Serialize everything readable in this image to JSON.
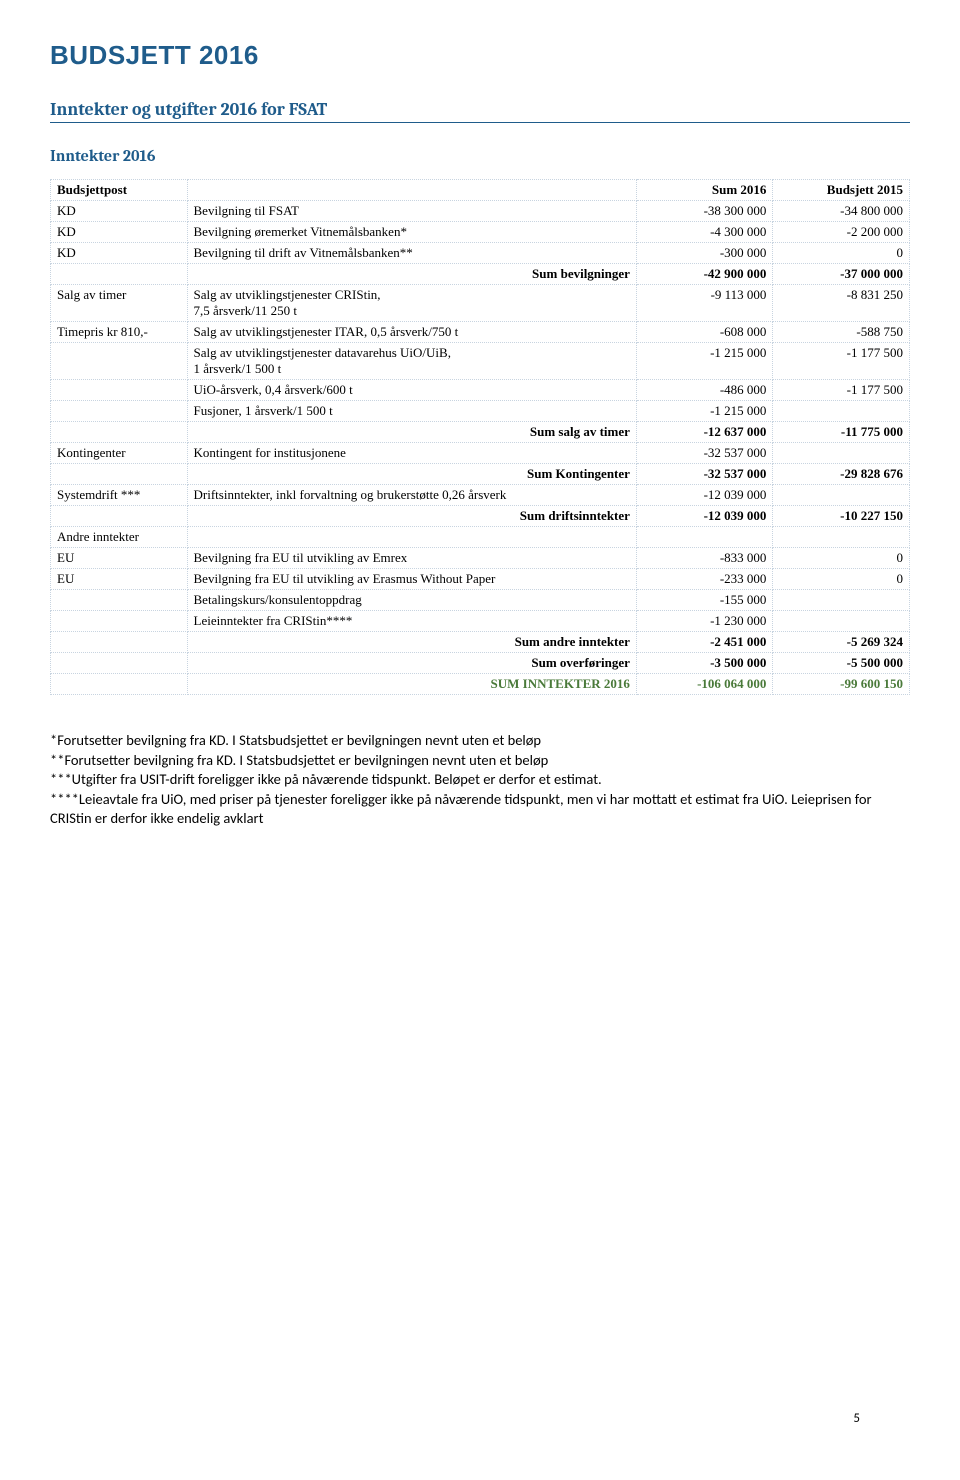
{
  "title": "BUDSJETT 2016",
  "section": "Inntekter og utgifter 2016 for FSAT",
  "subsection": "Inntekter 2016",
  "table": {
    "head": {
      "c0": "Budsjettpost",
      "c1": "",
      "c2": "Sum 2016",
      "c3": "Budsjett 2015"
    },
    "rows": [
      {
        "c0": "KD",
        "c1": "Bevilgning til FSAT",
        "c2": "-38 300 000",
        "c3": "-34 800 000"
      },
      {
        "c0": "KD",
        "c1": "Bevilgning øremerket Vitnemålsbanken*",
        "c2": "-4 300 000",
        "c3": "-2 200 000"
      },
      {
        "c0": "KD",
        "c1": "Bevilgning til drift av Vitnemålsbanken**",
        "c2": "-300 000",
        "c3": "0"
      },
      {
        "bold": true,
        "c0": "",
        "c1": "Sum bevilgninger",
        "c1align": "right",
        "c2": "-42 900 000",
        "c3": "-37 000 000"
      },
      {
        "c0": "Salg av timer",
        "c1": "Salg av utviklingstjenester CRIStin,\n7,5 årsverk/11 250 t",
        "c2": "-9 113 000",
        "c3": "-8 831 250"
      },
      {
        "c0": "Timepris kr 810,-",
        "c1": "Salg av utviklingstjenester ITAR, 0,5 årsverk/750 t",
        "c2": "-608 000",
        "c3": "-588 750"
      },
      {
        "c0": "",
        "c1": "Salg av utviklingstjenester datavarehus UiO/UiB,\n1 årsverk/1 500 t",
        "c2": "-1 215 000",
        "c3": "-1 177 500"
      },
      {
        "c0": "",
        "c1": "UiO-årsverk, 0,4 årsverk/600 t",
        "c2": "-486 000",
        "c3": "-1 177 500"
      },
      {
        "c0": "",
        "c1": "Fusjoner, 1 årsverk/1 500 t",
        "c2": "-1 215 000",
        "c3": ""
      },
      {
        "bold": true,
        "c0": "",
        "c1": "Sum salg av timer",
        "c1align": "right",
        "c2": "-12 637 000",
        "c3": "-11 775 000"
      },
      {
        "c0": "Kontingenter",
        "c1": "Kontingent for institusjonene",
        "c2": "-32 537 000",
        "c3": ""
      },
      {
        "bold": true,
        "c0": "",
        "c1": "Sum Kontingenter",
        "c1align": "right",
        "c2": "-32 537 000",
        "c3": "-29 828 676"
      },
      {
        "c0": "Systemdrift ***",
        "c1": "Driftsinntekter, inkl forvaltning og brukerstøtte 0,26 årsverk",
        "c2": "-12 039 000",
        "c3": ""
      },
      {
        "bold": true,
        "c0": "",
        "c1": "Sum driftsinntekter",
        "c1align": "right",
        "c2": "-12 039 000",
        "c3": "-10 227 150"
      },
      {
        "c0": "Andre inntekter",
        "c1": "",
        "c2": "",
        "c3": ""
      },
      {
        "c0": "EU",
        "c1": "Bevilgning fra EU til utvikling av Emrex",
        "c2": "-833 000",
        "c3": "0"
      },
      {
        "c0": "EU",
        "c1": "Bevilgning fra EU til utvikling av Erasmus Without Paper",
        "c2": "-233 000",
        "c3": "0"
      },
      {
        "c0": "",
        "c1": "Betalingskurs/konsulentoppdrag",
        "c2": "-155 000",
        "c3": ""
      },
      {
        "c0": "",
        "c1": "Leieinntekter fra CRIStin****",
        "c2": "-1 230 000",
        "c3": ""
      },
      {
        "bold": true,
        "c0": "",
        "c1": "Sum andre inntekter",
        "c1align": "right",
        "c2": "-2 451 000",
        "c3": "-5 269 324"
      },
      {
        "bold": true,
        "c0": "",
        "c1": "Sum overføringer",
        "c1align": "right",
        "c2": "-3 500 000",
        "c3": "-5 500 000"
      },
      {
        "sumgreen": true,
        "c0": "",
        "c1": "SUM INNTEKTER 2016",
        "c1align": "right",
        "c2": "-106 064 000",
        "c3": "-99 600 150"
      }
    ]
  },
  "notes": [
    "*Forutsetter bevilgning fra KD. I Statsbudsjettet er bevilgningen nevnt uten et beløp",
    "**Forutsetter bevilgning fra KD. I Statsbudsjettet er bevilgningen nevnt uten et beløp",
    "***Utgifter fra USIT-drift foreligger ikke på nåværende tidspunkt. Beløpet er derfor et estimat.",
    "****Leieavtale fra UiO, med priser på tjenester foreligger ikke på nåværende tidspunkt, men vi har mottatt et estimat fra UiO. Leieprisen for CRIStin er derfor ikke endelig avklart"
  ],
  "pageNumber": "5",
  "colors": {
    "accent": "#1f5c8b",
    "sumgreen": "#4a7a3a",
    "tableBorder": "#c8d4e0"
  }
}
